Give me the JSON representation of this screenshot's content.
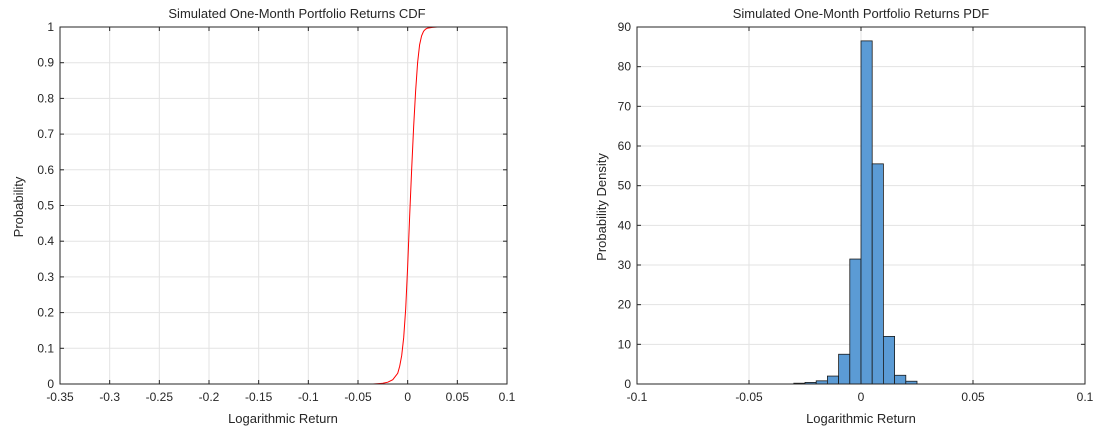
{
  "chart_data": [
    {
      "type": "line",
      "title": "Simulated One-Month Portfolio Returns CDF",
      "xlabel": "Logarithmic Return",
      "ylabel": "Probability",
      "xlim": [
        -0.35,
        0.1
      ],
      "ylim": [
        0,
        1
      ],
      "xticks": [
        -0.35,
        -0.3,
        -0.25,
        -0.2,
        -0.15,
        -0.1,
        -0.05,
        0,
        0.05,
        0.1
      ],
      "xtick_labels": [
        "-0.35",
        "-0.3",
        "-0.25",
        "-0.2",
        "-0.15",
        "-0.1",
        "-0.05",
        "0",
        "0.05",
        "0.1"
      ],
      "yticks": [
        0,
        0.1,
        0.2,
        0.3,
        0.4,
        0.5,
        0.6,
        0.7,
        0.8,
        0.9,
        1
      ],
      "ytick_labels": [
        "0",
        "0.1",
        "0.2",
        "0.3",
        "0.4",
        "0.5",
        "0.6",
        "0.7",
        "0.8",
        "0.9",
        "1"
      ],
      "grid": true,
      "line_color": "#ff0000",
      "x": [
        -0.325,
        -0.1,
        -0.05,
        -0.035,
        -0.025,
        -0.02,
        -0.015,
        -0.01,
        -0.008,
        -0.006,
        -0.004,
        -0.002,
        0,
        0.002,
        0.004,
        0.006,
        0.008,
        0.01,
        0.012,
        0.014,
        0.016,
        0.018,
        0.02,
        0.025,
        0.03,
        0.04,
        0.075
      ],
      "y": [
        0,
        0,
        0,
        0.0,
        0.002,
        0.005,
        0.012,
        0.03,
        0.05,
        0.08,
        0.13,
        0.21,
        0.33,
        0.47,
        0.6,
        0.72,
        0.82,
        0.9,
        0.95,
        0.975,
        0.988,
        0.994,
        0.997,
        0.999,
        1.0,
        1.0,
        1.0
      ]
    },
    {
      "type": "bar",
      "title": "Simulated One-Month Portfolio Returns PDF",
      "xlabel": "Logarithmic Return",
      "ylabel": "Probability Density",
      "xlim": [
        -0.1,
        0.1
      ],
      "ylim": [
        0,
        90
      ],
      "xticks": [
        -0.1,
        -0.05,
        0,
        0.05,
        0.1
      ],
      "xtick_labels": [
        "-0.1",
        "-0.05",
        "0",
        "0.05",
        "0.1"
      ],
      "yticks": [
        0,
        10,
        20,
        30,
        40,
        50,
        60,
        70,
        80,
        90
      ],
      "ytick_labels": [
        "0",
        "10",
        "20",
        "30",
        "40",
        "50",
        "60",
        "70",
        "80",
        "90"
      ],
      "grid": true,
      "bar_color": "#5b9bd5",
      "bin_edges": [
        -0.03,
        -0.025,
        -0.02,
        -0.015,
        -0.01,
        -0.005,
        0,
        0.005,
        0.01,
        0.015,
        0.02,
        0.025
      ],
      "values": [
        0.2,
        0.4,
        0.8,
        2.0,
        7.5,
        31.5,
        86.5,
        55.5,
        12.0,
        2.2,
        0.7
      ]
    }
  ]
}
